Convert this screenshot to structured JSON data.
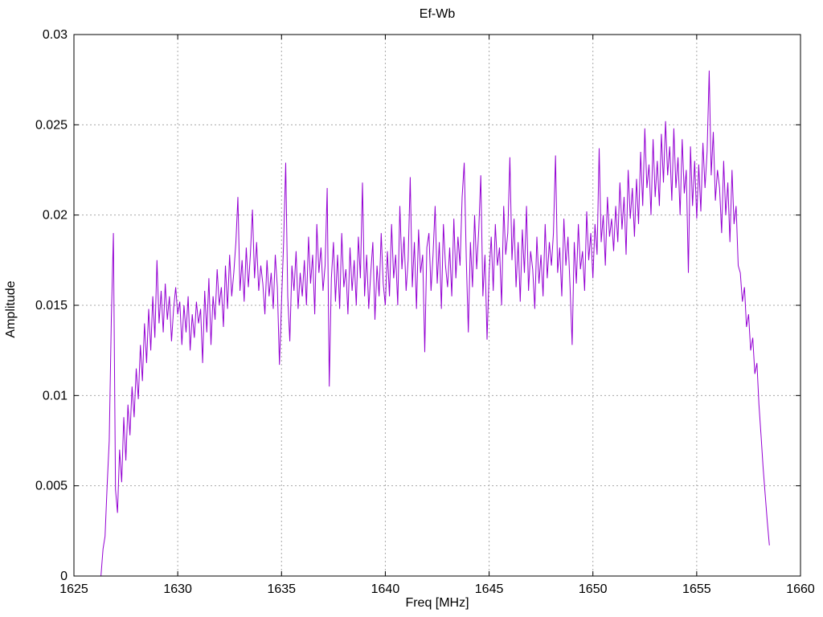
{
  "chart_data": {
    "type": "line",
    "title": "Ef-Wb",
    "xlabel": "Freq [MHz]",
    "ylabel": "Amplitude",
    "xlim": [
      1625,
      1660
    ],
    "ylim": [
      0,
      0.03
    ],
    "xticks": [
      1625,
      1630,
      1635,
      1640,
      1645,
      1650,
      1655,
      1660
    ],
    "xtick_labels": [
      "1625",
      "1630",
      "1635",
      "1640",
      "1645",
      "1650",
      "1655",
      "1660"
    ],
    "yticks": [
      0,
      0.005,
      0.01,
      0.015,
      0.02,
      0.025,
      0.03
    ],
    "ytick_labels": [
      "0",
      "0.005",
      "0.01",
      "0.015",
      "0.02",
      "0.025",
      "0.03"
    ],
    "grid": true,
    "legend": "none",
    "colors": {
      "line": "#9400d3",
      "grid": "#a8a8a8",
      "border": "#000000",
      "background": "#ffffff"
    },
    "series": [
      {
        "name": "Ef-Wb",
        "color": "#9400d3",
        "x_start": 1626.3,
        "dx": 0.1,
        "value_scale": 0.0001,
        "values": [
          0,
          15,
          22,
          50,
          75,
          142,
          190,
          48,
          35,
          70,
          52,
          88,
          64,
          95,
          78,
          105,
          88,
          115,
          98,
          128,
          108,
          140,
          118,
          148,
          125,
          155,
          132,
          175,
          140,
          158,
          135,
          162,
          142,
          155,
          130,
          148,
          160,
          145,
          152,
          128,
          150,
          135,
          155,
          125,
          145,
          132,
          152,
          140,
          148,
          118,
          158,
          135,
          165,
          128,
          155,
          142,
          170,
          150,
          160,
          138,
          172,
          148,
          178,
          155,
          168,
          185,
          210,
          158,
          175,
          152,
          182,
          160,
          178,
          203,
          165,
          185,
          158,
          172,
          162,
          145,
          175,
          155,
          168,
          148,
          178,
          160,
          117,
          152,
          185,
          229,
          155,
          130,
          172,
          158,
          180,
          148,
          168,
          155,
          175,
          150,
          188,
          162,
          178,
          145,
          195,
          168,
          182,
          158,
          172,
          215,
          105,
          165,
          185,
          152,
          178,
          148,
          190,
          160,
          170,
          145,
          182,
          158,
          175,
          150,
          188,
          165,
          218,
          155,
          178,
          148,
          168,
          185,
          142,
          172,
          155,
          190,
          162,
          150,
          180,
          155,
          195,
          165,
          178,
          150,
          205,
          170,
          188,
          158,
          175,
          221,
          160,
          185,
          148,
          192,
          168,
          178,
          124,
          182,
          190,
          158,
          178,
          205,
          162,
          185,
          148,
          195,
          172,
          160,
          182,
          155,
          198,
          165,
          188,
          172,
          210,
          229,
          175,
          135,
          185,
          160,
          200,
          170,
          192,
          222,
          155,
          178,
          131,
          168,
          188,
          158,
          195,
          172,
          182,
          150,
          205,
          178,
          190,
          232,
          175,
          198,
          160,
          185,
          152,
          192,
          168,
          205,
          158,
          180,
          170,
          148,
          188,
          162,
          178,
          155,
          195,
          165,
          185,
          172,
          190,
          233,
          168,
          182,
          155,
          198,
          172,
          188,
          160,
          128,
          185,
          162,
          195,
          170,
          180,
          158,
          202,
          175,
          190,
          165,
          195,
          178,
          237,
          185,
          200,
          172,
          210,
          188,
          198,
          180,
          205,
          185,
          218,
          192,
          210,
          178,
          225,
          198,
          215,
          188,
          220,
          195,
          235,
          205,
          248,
          215,
          228,
          200,
          242,
          210,
          230,
          205,
          245,
          218,
          252,
          222,
          238,
          208,
          248,
          215,
          232,
          200,
          242,
          212,
          225,
          168,
          238,
          205,
          230,
          198,
          228,
          202,
          240,
          215,
          235,
          280,
          222,
          246,
          208,
          225,
          215,
          190,
          230,
          200,
          218,
          185,
          225,
          195,
          205,
          172,
          168,
          152,
          160,
          138,
          145,
          125,
          132,
          112,
          118,
          95,
          78,
          60,
          45,
          30,
          17
        ]
      }
    ]
  }
}
